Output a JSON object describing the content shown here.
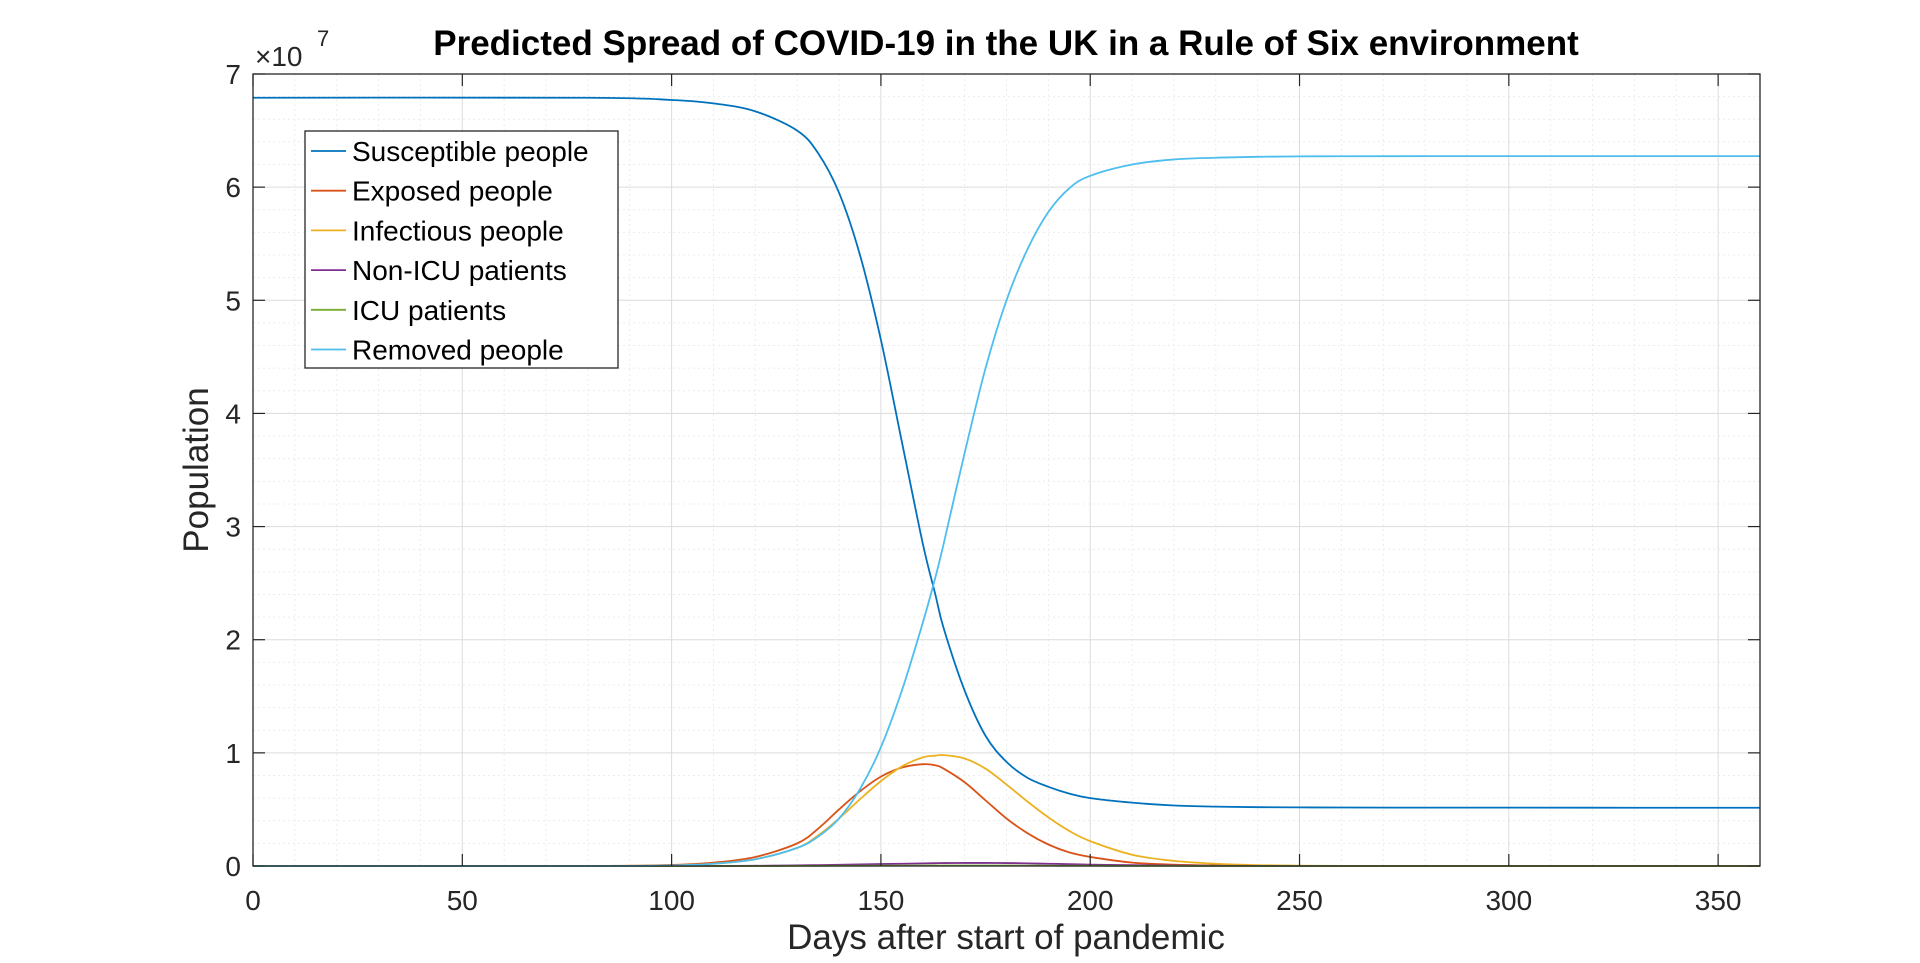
{
  "chart_data": {
    "type": "line",
    "title": "Predicted Spread of COVID-19 in the UK in a Rule of Six environment",
    "xlabel": "Days after start of pandemic",
    "ylabel": "Population",
    "exponent_label": {
      "base": "×10",
      "power": "7"
    },
    "xlim": [
      0,
      360
    ],
    "ylim": [
      0,
      7
    ],
    "y_scale_note": "values in units of 10^7",
    "x_ticks": [
      0,
      50,
      100,
      150,
      200,
      250,
      300,
      350
    ],
    "y_ticks": [
      0,
      1,
      2,
      3,
      4,
      5,
      6,
      7
    ],
    "x_tick_labels": [
      "0",
      "50",
      "100",
      "150",
      "200",
      "250",
      "300",
      "350"
    ],
    "y_tick_labels": [
      "0",
      "1",
      "2",
      "3",
      "4",
      "5",
      "6",
      "7"
    ],
    "grid": true,
    "minor_grid": true,
    "legend_position": "top-left",
    "x": [
      0,
      80,
      100,
      110,
      120,
      130,
      135,
      140,
      145,
      150,
      155,
      160,
      163,
      165,
      170,
      175,
      180,
      185,
      190,
      195,
      200,
      210,
      220,
      230,
      240,
      250,
      260,
      280,
      300,
      330,
      360
    ],
    "series": [
      {
        "name": "Susceptible people",
        "color": "#0072BD",
        "values": [
          6.79,
          6.79,
          6.77,
          6.74,
          6.67,
          6.5,
          6.3,
          5.95,
          5.4,
          4.65,
          3.75,
          2.85,
          2.4,
          2.1,
          1.55,
          1.15,
          0.92,
          0.78,
          0.7,
          0.64,
          0.6,
          0.56,
          0.535,
          0.525,
          0.52,
          0.518,
          0.517,
          0.516,
          0.516,
          0.515,
          0.515
        ]
      },
      {
        "name": "Exposed people",
        "color": "#D95319",
        "values": [
          0,
          0,
          0.01,
          0.03,
          0.08,
          0.2,
          0.33,
          0.5,
          0.66,
          0.79,
          0.87,
          0.9,
          0.89,
          0.86,
          0.74,
          0.58,
          0.42,
          0.29,
          0.19,
          0.12,
          0.08,
          0.03,
          0.012,
          0.005,
          0.002,
          0.001,
          0,
          0,
          0,
          0,
          0
        ]
      },
      {
        "name": "Infectious people",
        "color": "#EDB120",
        "values": [
          0,
          0,
          0.005,
          0.02,
          0.06,
          0.16,
          0.27,
          0.42,
          0.59,
          0.75,
          0.88,
          0.96,
          0.975,
          0.98,
          0.95,
          0.86,
          0.72,
          0.57,
          0.43,
          0.31,
          0.22,
          0.1,
          0.045,
          0.02,
          0.008,
          0.003,
          0.001,
          0,
          0,
          0,
          0
        ]
      },
      {
        "name": "Non-ICU patients",
        "color": "#7E2F8E",
        "values": [
          0,
          0,
          0,
          0,
          0.002,
          0.005,
          0.008,
          0.011,
          0.014,
          0.017,
          0.02,
          0.023,
          0.025,
          0.026,
          0.027,
          0.027,
          0.026,
          0.023,
          0.02,
          0.016,
          0.012,
          0.007,
          0.004,
          0.002,
          0.001,
          0,
          0,
          0,
          0,
          0,
          0
        ]
      },
      {
        "name": "ICU patients",
        "color": "#77AC30",
        "values": [
          0,
          0,
          0,
          0,
          0,
          0.001,
          0.001,
          0.002,
          0.002,
          0.003,
          0.003,
          0.004,
          0.004,
          0.004,
          0.004,
          0.004,
          0.004,
          0.003,
          0.003,
          0.002,
          0.002,
          0.001,
          0.001,
          0,
          0,
          0,
          0,
          0,
          0,
          0,
          0
        ]
      },
      {
        "name": "Removed people",
        "color": "#4DBEEE",
        "values": [
          0,
          0,
          0.005,
          0.02,
          0.06,
          0.16,
          0.26,
          0.42,
          0.68,
          1.05,
          1.55,
          2.15,
          2.55,
          2.85,
          3.65,
          4.4,
          5.0,
          5.45,
          5.78,
          5.99,
          6.1,
          6.2,
          6.245,
          6.26,
          6.268,
          6.272,
          6.273,
          6.274,
          6.274,
          6.274,
          6.274
        ]
      }
    ]
  }
}
